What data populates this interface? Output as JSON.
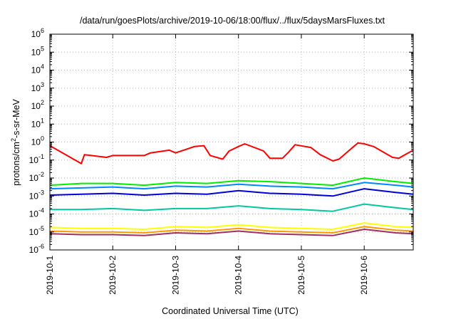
{
  "chart_data": {
    "type": "line",
    "title": "/data/run/goesPlots/archive/2019-10-06/18:00/flux/../flux/5daysMarsFluxes.txt",
    "xlabel": "Coordinated Universal Time (UTC)",
    "ylabel_main": "protons/cm",
    "ylabel_sup": "2",
    "ylabel_tail": "-s-sr-MeV",
    "y_scale": "log",
    "ylim_exp": [
      -6,
      6
    ],
    "y_ticks": [
      {
        "base": "10",
        "exp": "-6",
        "value": -6
      },
      {
        "base": "10",
        "exp": "-5",
        "value": -5
      },
      {
        "base": "10",
        "exp": "-4",
        "value": -4
      },
      {
        "base": "10",
        "exp": "-3",
        "value": -3
      },
      {
        "base": "10",
        "exp": "-2",
        "value": -2
      },
      {
        "base": "10",
        "exp": "-1",
        "value": -1
      },
      {
        "base": "10",
        "exp": "0",
        "value": 0
      },
      {
        "base": "10",
        "exp": "1",
        "value": 1
      },
      {
        "base": "10",
        "exp": "2",
        "value": 2
      },
      {
        "base": "10",
        "exp": "3",
        "value": 3
      },
      {
        "base": "10",
        "exp": "4",
        "value": 4
      },
      {
        "base": "10",
        "exp": "5",
        "value": 5
      },
      {
        "base": "10",
        "exp": "6",
        "value": 6
      }
    ],
    "x_ticks": [
      {
        "label": "2019-10-1",
        "day": 0
      },
      {
        "label": "2019-10-2",
        "day": 1
      },
      {
        "label": "2019-10-3",
        "day": 2
      },
      {
        "label": "2019-10-4",
        "day": 3
      },
      {
        "label": "2019-10-5",
        "day": 4
      },
      {
        "label": "2019-10-6",
        "day": 5
      }
    ],
    "xlim_days": [
      0,
      5.78
    ],
    "grid": true,
    "series": [
      {
        "color": "#ff0000",
        "x": [
          0,
          0.5,
          0.55,
          0.9,
          1.0,
          1.5,
          1.6,
          1.9,
          2.0,
          2.3,
          2.45,
          2.55,
          2.75,
          2.85,
          3.0,
          3.1,
          3.4,
          3.5,
          3.7,
          3.8,
          3.9,
          4.15,
          4.3,
          4.5,
          4.6,
          4.8,
          4.9,
          5.0,
          5.15,
          5.3,
          5.45,
          5.55,
          5.65,
          5.78
        ],
        "y": [
          -0.2,
          -1.2,
          -0.7,
          -0.85,
          -0.75,
          -0.75,
          -0.6,
          -0.45,
          -0.6,
          -0.25,
          -0.2,
          -0.75,
          -0.95,
          -0.5,
          -0.25,
          -0.1,
          -0.5,
          -0.9,
          -0.9,
          -0.55,
          -0.15,
          -0.3,
          -0.7,
          -1.05,
          -0.95,
          -0.35,
          -0.05,
          -0.1,
          -0.25,
          -0.55,
          -0.85,
          -0.9,
          -0.7,
          -0.45
        ]
      },
      {
        "color": "#00ee00",
        "x": [
          0,
          0.5,
          1.0,
          1.5,
          2.0,
          2.5,
          3.0,
          3.5,
          4.0,
          4.5,
          5.0,
          5.5,
          5.78
        ],
        "y": [
          -2.4,
          -2.3,
          -2.3,
          -2.4,
          -2.25,
          -2.3,
          -2.15,
          -2.2,
          -2.3,
          -2.4,
          -2.0,
          -2.2,
          -2.3
        ]
      },
      {
        "color": "#0088ff",
        "x": [
          0,
          0.5,
          1.0,
          1.5,
          2.0,
          2.5,
          3.0,
          3.5,
          4.0,
          4.5,
          5.0,
          5.5,
          5.78
        ],
        "y": [
          -2.6,
          -2.55,
          -2.5,
          -2.6,
          -2.45,
          -2.5,
          -2.35,
          -2.45,
          -2.5,
          -2.6,
          -2.25,
          -2.4,
          -2.5
        ]
      },
      {
        "color": "#0000dd",
        "x": [
          0,
          0.5,
          1.0,
          1.5,
          2.0,
          2.5,
          3.0,
          3.5,
          4.0,
          4.5,
          5.0,
          5.5,
          5.78
        ],
        "y": [
          -2.95,
          -2.9,
          -2.85,
          -2.95,
          -2.85,
          -2.9,
          -2.7,
          -2.85,
          -2.9,
          -3.0,
          -2.6,
          -2.8,
          -2.9
        ]
      },
      {
        "color": "#00c8a0",
        "x": [
          0,
          0.5,
          1.0,
          1.5,
          2.0,
          2.5,
          3.0,
          3.5,
          4.0,
          4.5,
          5.0,
          5.5,
          5.78
        ],
        "y": [
          -3.75,
          -3.75,
          -3.7,
          -3.8,
          -3.7,
          -3.7,
          -3.55,
          -3.7,
          -3.75,
          -3.85,
          -3.45,
          -3.65,
          -3.75
        ]
      },
      {
        "color": "#ffff00",
        "x": [
          0,
          0.5,
          1.0,
          1.5,
          2.0,
          2.5,
          3.0,
          3.5,
          4.0,
          4.5,
          5.0,
          5.5,
          5.78
        ],
        "y": [
          -4.75,
          -4.8,
          -4.8,
          -4.85,
          -4.7,
          -4.75,
          -4.6,
          -4.75,
          -4.8,
          -4.85,
          -4.5,
          -4.7,
          -4.75
        ]
      },
      {
        "color": "#ff9900",
        "x": [
          0,
          0.5,
          1.0,
          1.5,
          2.0,
          2.5,
          3.0,
          3.5,
          4.0,
          4.5,
          5.0,
          5.5,
          5.78
        ],
        "y": [
          -4.95,
          -5.0,
          -5.0,
          -5.05,
          -4.9,
          -4.95,
          -4.8,
          -4.95,
          -5.0,
          -5.05,
          -4.7,
          -4.9,
          -4.95
        ]
      },
      {
        "color": "#a03060",
        "x": [
          0,
          0.5,
          1.0,
          1.5,
          2.0,
          2.5,
          3.0,
          3.5,
          4.0,
          4.5,
          5.0,
          5.5,
          5.78
        ],
        "y": [
          -5.1,
          -5.15,
          -5.15,
          -5.2,
          -5.05,
          -5.1,
          -4.95,
          -5.1,
          -5.15,
          -5.2,
          -4.85,
          -5.05,
          -5.1
        ]
      }
    ]
  }
}
